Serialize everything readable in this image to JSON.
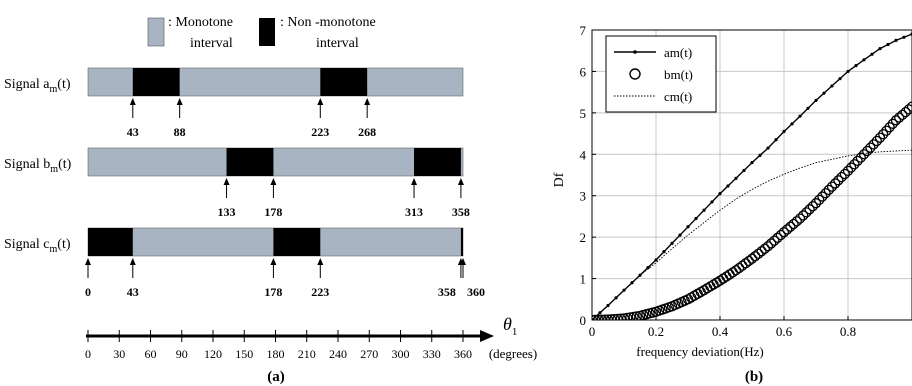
{
  "chart_data": [
    {
      "type": "interval-bars",
      "panel_label": "(a)",
      "axis_unit": "(degrees)",
      "axis_range": [
        0,
        360
      ],
      "axis_ticks": [
        0,
        30,
        60,
        90,
        120,
        150,
        180,
        210,
        240,
        270,
        300,
        330,
        360
      ],
      "legend": {
        "monotone": {
          "prefix": ": Monotone",
          "suffix": "interval",
          "color": "#a9b4c2"
        },
        "non_monotone": {
          "prefix": ": Non -monotone",
          "suffix": "interval",
          "color": "#000000"
        }
      },
      "signals": [
        {
          "name": "Signal a",
          "sub": "m",
          "tail": "(t)",
          "span": [
            0,
            360
          ],
          "non_monotone_intervals": [
            [
              43,
              88
            ],
            [
              223,
              268
            ]
          ],
          "markers": [
            43,
            88,
            223,
            268
          ],
          "marker_labels": [
            "43",
            "88",
            "223",
            "268"
          ]
        },
        {
          "name": "Signal b",
          "sub": "m",
          "tail": "(t)",
          "span": [
            0,
            360
          ],
          "non_monotone_intervals": [
            [
              133,
              178
            ],
            [
              313,
              358
            ]
          ],
          "markers": [
            133,
            178,
            313,
            358
          ],
          "marker_labels": [
            "133",
            "178",
            "313",
            "358"
          ]
        },
        {
          "name": "Signal c",
          "sub": "m",
          "tail": "(t)",
          "span": [
            0,
            360
          ],
          "non_monotone_intervals": [
            [
              0,
              43
            ],
            [
              178,
              223
            ],
            [
              358,
              360
            ]
          ],
          "markers": [
            0,
            43,
            178,
            223,
            358,
            360
          ],
          "marker_labels": [
            "0",
            "43",
            "178",
            "223",
            "358",
            "360"
          ]
        }
      ]
    },
    {
      "type": "line",
      "panel_label": "(b)",
      "xlabel": "frequency deviation(Hz)",
      "ylabel": "Df",
      "xlim": [
        0,
        1
      ],
      "ylim": [
        0,
        7
      ],
      "xticks": [
        0,
        0.2,
        0.4,
        0.6,
        0.8
      ],
      "xtick_labels": [
        "0",
        "0.2",
        "0.4",
        "0.6",
        "0.8"
      ],
      "yticks": [
        0,
        1,
        2,
        3,
        4,
        5,
        6,
        7
      ],
      "ytick_labels": [
        "0",
        "1",
        "2",
        "3",
        "4",
        "5",
        "6",
        "7"
      ],
      "grid": true,
      "legend_position": "top-left",
      "series": [
        {
          "name": "am(t)",
          "style": "solid-dots",
          "x": [
            0,
            0.05,
            0.1,
            0.15,
            0.2,
            0.25,
            0.3,
            0.35,
            0.4,
            0.45,
            0.5,
            0.55,
            0.6,
            0.65,
            0.7,
            0.75,
            0.8,
            0.85,
            0.9,
            0.95,
            1.0
          ],
          "y": [
            0,
            0.35,
            0.72,
            1.08,
            1.45,
            1.85,
            2.25,
            2.65,
            3.05,
            3.42,
            3.8,
            4.15,
            4.55,
            4.92,
            5.3,
            5.65,
            6.0,
            6.28,
            6.55,
            6.75,
            6.9
          ]
        },
        {
          "name": "bm(t)",
          "style": "circles",
          "x": [
            0,
            0.05,
            0.1,
            0.15,
            0.2,
            0.25,
            0.3,
            0.35,
            0.4,
            0.45,
            0.5,
            0.55,
            0.6,
            0.65,
            0.7,
            0.75,
            0.8,
            0.85,
            0.9,
            0.95,
            1.0
          ],
          "y": [
            0,
            0.01,
            0.04,
            0.1,
            0.2,
            0.33,
            0.5,
            0.72,
            0.95,
            1.2,
            1.48,
            1.78,
            2.12,
            2.45,
            2.82,
            3.22,
            3.6,
            4.0,
            4.4,
            4.82,
            5.15
          ]
        },
        {
          "name": "cm(t)",
          "style": "dotted",
          "x": [
            0,
            0.05,
            0.1,
            0.15,
            0.2,
            0.25,
            0.3,
            0.35,
            0.4,
            0.45,
            0.5,
            0.55,
            0.6,
            0.65,
            0.7,
            0.75,
            0.8,
            0.85,
            0.9,
            0.95,
            1.0
          ],
          "y": [
            0,
            0.35,
            0.72,
            1.08,
            1.38,
            1.72,
            2.05,
            2.35,
            2.65,
            2.92,
            3.15,
            3.35,
            3.52,
            3.67,
            3.8,
            3.88,
            3.96,
            4.02,
            4.06,
            4.08,
            4.1
          ]
        }
      ]
    }
  ]
}
